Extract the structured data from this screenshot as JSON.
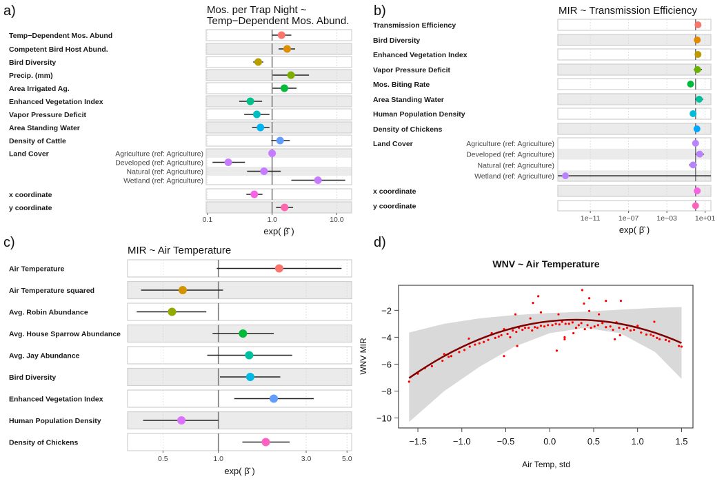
{
  "chart_data": [
    {
      "type": "forest",
      "panel_label": "a)",
      "title_lines": [
        "Mos. per Trap Night ~",
        "Temp−Dependent Mos. Abund."
      ],
      "xlabel": "exp( β̂ )",
      "x_scale": "log",
      "xlim": [
        0.0955,
        17.0
      ],
      "reference_line": 1.0,
      "ticks": [
        {
          "value": 0.1,
          "label": "0.1"
        },
        {
          "value": 1.0,
          "label": "1.0"
        },
        {
          "value": 10.0,
          "label": "10.0"
        }
      ],
      "groups": [
        {
          "label": "Temp−Dependent Mos. Abund",
          "items": [
            {
              "est": 1.4,
              "lo": 1.0,
              "hi": 1.98,
              "color": "#F8766D"
            }
          ]
        },
        {
          "label": "Competent Bird Host Abund.",
          "items": [
            {
              "est": 1.71,
              "lo": 1.26,
              "hi": 2.27,
              "color": "#DE8C00"
            }
          ]
        },
        {
          "label": "Bird Diversity",
          "items": [
            {
              "est": 0.61,
              "lo": 0.51,
              "hi": 0.73,
              "color": "#B79F00"
            }
          ]
        },
        {
          "label": "Precip. (mm)",
          "items": [
            {
              "est": 1.96,
              "lo": 1.02,
              "hi": 3.72,
              "color": "#7CAE00"
            }
          ]
        },
        {
          "label": "Area Irrigated Ag.",
          "items": [
            {
              "est": 1.55,
              "lo": 1.02,
              "hi": 2.39,
              "color": "#00BA38"
            }
          ]
        },
        {
          "label": "Enhanced Vegetation Index",
          "items": [
            {
              "est": 0.46,
              "lo": 0.31,
              "hi": 0.7,
              "color": "#00C08B"
            }
          ]
        },
        {
          "label": "Vapor Pressure Deficit",
          "items": [
            {
              "est": 0.58,
              "lo": 0.37,
              "hi": 0.91,
              "color": "#00BFC4"
            }
          ]
        },
        {
          "label": "Area Standing Water",
          "items": [
            {
              "est": 0.66,
              "lo": 0.49,
              "hi": 0.91,
              "color": "#00B4F0"
            }
          ]
        },
        {
          "label": "Density of Cattle",
          "items": [
            {
              "est": 1.33,
              "lo": 0.97,
              "hi": 1.88,
              "color": "#619CFF"
            }
          ]
        },
        {
          "label": "Land Cover",
          "items": [
            {
              "sublabel": "Agriculture (ref: Agriculture)",
              "est": 1.0,
              "lo": null,
              "hi": null,
              "color": "#C77CFF"
            },
            {
              "sublabel": "Developed (ref: Agriculture)",
              "est": 0.21,
              "lo": 0.12,
              "hi": 0.38,
              "color": "#C77CFF"
            },
            {
              "sublabel": "Natural (ref: Agriculture)",
              "est": 0.75,
              "lo": 0.41,
              "hi": 1.36,
              "color": "#C77CFF"
            },
            {
              "sublabel": "Wetland (ref: Agriculture)",
              "est": 5.12,
              "lo": 1.98,
              "hi": 13.5,
              "color": "#C77CFF"
            }
          ]
        },
        {
          "label": "x coordinate",
          "items": [
            {
              "est": 0.53,
              "lo": 0.4,
              "hi": 0.71,
              "color": "#F564E3"
            }
          ]
        },
        {
          "label": "y coordinate",
          "items": [
            {
              "est": 1.56,
              "lo": 1.15,
              "hi": 2.11,
              "color": "#FF64B0"
            }
          ]
        }
      ]
    },
    {
      "type": "forest",
      "panel_label": "b)",
      "title_lines": [
        "MIR ~ Transmission Efficiency"
      ],
      "xlabel": "exp( β̂ )",
      "x_scale": "log",
      "xlim": [
        4e-15,
        40
      ],
      "reference_line": 1.0,
      "ticks": [
        {
          "value": 1e-11,
          "label": "1e−11"
        },
        {
          "value": 1e-07,
          "label": "1e−07"
        },
        {
          "value": 0.001,
          "label": "1e−03"
        },
        {
          "value": 10,
          "label": "1e+01"
        }
      ],
      "groups": [
        {
          "label": "Transmission Efficiency",
          "items": [
            {
              "est": 1.8,
              "lo": null,
              "hi": null,
              "color": "#F8766D"
            }
          ]
        },
        {
          "label": "Bird Diversity",
          "items": [
            {
              "est": 1.5,
              "lo": null,
              "hi": null,
              "color": "#E18A00"
            }
          ]
        },
        {
          "label": "Enhanced Vegetation Index",
          "items": [
            {
              "est": 1.8,
              "lo": null,
              "hi": null,
              "color": "#BE9C00"
            }
          ]
        },
        {
          "label": "Vapor Pressure Deficit",
          "items": [
            {
              "est": 1.6,
              "lo": 0.64,
              "hi": 4.7,
              "color": "#6BB100"
            }
          ]
        },
        {
          "label": "Mos. Biting Rate",
          "items": [
            {
              "est": 0.3,
              "lo": null,
              "hi": null,
              "color": "#00BA38"
            }
          ]
        },
        {
          "label": "Area Standing Water",
          "items": [
            {
              "est": 2.4,
              "lo": 0.93,
              "hi": 6.5,
              "color": "#00C1A0"
            }
          ]
        },
        {
          "label": "Human Population Density",
          "items": [
            {
              "est": 0.55,
              "lo": null,
              "hi": null,
              "color": "#00BBDA"
            }
          ]
        },
        {
          "label": "Density of Chickens",
          "items": [
            {
              "est": 1.4,
              "lo": null,
              "hi": null,
              "color": "#00A9FF"
            }
          ]
        },
        {
          "label": "Land Cover",
          "items": [
            {
              "sublabel": "Agriculture (ref: Agriculture)",
              "est": 1.0,
              "lo": null,
              "hi": null,
              "color": "#B983FF"
            },
            {
              "sublabel": "Developed (ref: Agriculture)",
              "est": 2.7,
              "lo": 0.93,
              "hi": 7.7,
              "color": "#B983FF"
            },
            {
              "sublabel": "Natural (ref: Agriculture)",
              "est": 0.55,
              "lo": 0.2,
              "hi": 1.4,
              "color": "#B983FF"
            },
            {
              "sublabel": "Wetland (ref: Agriculture)",
              "est": 2.5e-14,
              "lo": 1e-16,
              "hi": 1000.0,
              "color": "#B983FF"
            }
          ]
        },
        {
          "label": "x coordinate",
          "items": [
            {
              "est": 1.5,
              "lo": null,
              "hi": null,
              "color": "#F763E0"
            }
          ]
        },
        {
          "label": "y coordinate",
          "items": [
            {
              "est": 1.0,
              "lo": null,
              "hi": null,
              "color": "#FF62BC"
            }
          ]
        }
      ]
    },
    {
      "type": "forest",
      "panel_label": "c)",
      "title_lines": [
        "MIR ~ Air Temperature"
      ],
      "xlabel": "exp( β̂ )",
      "x_scale": "log",
      "xlim": [
        0.321,
        5.3
      ],
      "reference_line": 1.0,
      "ticks": [
        {
          "value": 0.5,
          "label": "0.5"
        },
        {
          "value": 1.0,
          "label": "1.0"
        },
        {
          "value": 3.0,
          "label": "3.0"
        },
        {
          "value": 5.0,
          "label": "5.0"
        }
      ],
      "groups": [
        {
          "label": "Air Temperature",
          "items": [
            {
              "est": 2.14,
              "lo": 0.98,
              "hi": 4.67,
              "color": "#F8766D"
            }
          ]
        },
        {
          "label": "Air Temperature squared",
          "items": [
            {
              "est": 0.64,
              "lo": 0.38,
              "hi": 1.06,
              "color": "#D39200"
            }
          ]
        },
        {
          "label": "Avg. Robin Abundance",
          "items": [
            {
              "est": 0.56,
              "lo": 0.36,
              "hi": 0.86,
              "color": "#93AA00"
            }
          ]
        },
        {
          "label": "Avg. House Sparrow Abundance",
          "items": [
            {
              "est": 1.36,
              "lo": 0.93,
              "hi": 2.0,
              "color": "#00BA38"
            }
          ]
        },
        {
          "label": "Avg. Jay Abundance",
          "items": [
            {
              "est": 1.47,
              "lo": 0.87,
              "hi": 2.52,
              "color": "#00C19F"
            }
          ]
        },
        {
          "label": "Bird Diversity",
          "items": [
            {
              "est": 1.49,
              "lo": 1.02,
              "hi": 2.17,
              "color": "#00B9E3"
            }
          ]
        },
        {
          "label": "Enhanced Vegetation Index",
          "items": [
            {
              "est": 2.0,
              "lo": 1.22,
              "hi": 3.3,
              "color": "#619CFF"
            }
          ]
        },
        {
          "label": "Human Population Density",
          "items": [
            {
              "est": 0.63,
              "lo": 0.39,
              "hi": 1.0,
              "color": "#DB72FB"
            }
          ]
        },
        {
          "label": "Density of Chickens",
          "items": [
            {
              "est": 1.81,
              "lo": 1.35,
              "hi": 2.44,
              "color": "#FF61C3"
            }
          ]
        }
      ]
    },
    {
      "type": "scatter",
      "panel_label": "d)",
      "title": "WNV ~ Air Temperature",
      "xlabel": "Air Temp, std",
      "ylabel": "WNV MIR",
      "xlim": [
        -1.72,
        1.63
      ],
      "ylim": [
        -10.74,
        -0.14
      ],
      "x_ticks": [
        {
          "value": -1.5,
          "label": "−1.5"
        },
        {
          "value": -1.0,
          "label": "−1.0"
        },
        {
          "value": -0.5,
          "label": "−0.5"
        },
        {
          "value": 0.0,
          "label": "0.0"
        },
        {
          "value": 0.5,
          "label": "0.5"
        },
        {
          "value": 1.0,
          "label": "1.0"
        },
        {
          "value": 1.5,
          "label": "1.5"
        }
      ],
      "y_ticks": [
        {
          "value": -2,
          "label": "−2"
        },
        {
          "value": -4,
          "label": "−4"
        },
        {
          "value": -6,
          "label": "−6"
        },
        {
          "value": -8,
          "label": "−8"
        },
        {
          "value": -10,
          "label": "−10"
        }
      ],
      "point_color": "#FF0000",
      "fit_color": "#800000",
      "band_color": "#D9D9D9",
      "points": {
        "x": [
          -1.6,
          -1.5,
          -1.42,
          -1.34,
          -1.22,
          -1.2,
          -1.15,
          -1.12,
          -1.03,
          -0.97,
          -0.91,
          -0.85,
          -0.8,
          -0.75,
          -0.7,
          -0.66,
          -0.62,
          -0.58,
          -0.55,
          -0.52,
          -0.48,
          -0.45,
          -0.42,
          -0.38,
          -0.35,
          -0.31,
          -0.28,
          -0.24,
          -0.2,
          -0.17,
          -0.14,
          -0.1,
          -0.06,
          -0.02,
          0.03,
          0.07,
          0.11,
          0.14,
          0.18,
          0.22,
          0.26,
          0.3,
          0.33,
          0.36,
          0.4,
          0.43,
          0.47,
          0.51,
          0.55,
          0.6,
          0.64,
          0.69,
          0.72,
          0.76,
          0.79,
          0.84,
          0.88,
          0.92,
          0.96,
          1.0,
          1.04,
          1.1,
          1.15,
          1.18,
          1.22,
          1.25,
          1.32,
          1.36,
          1.47,
          1.5,
          -0.13,
          -0.19,
          -0.1,
          -0.39,
          -0.22,
          0.37,
          0.45,
          0.39,
          0.45,
          0.64,
          0.81,
          0.56,
          0.1,
          1.19,
          -0.52,
          -0.37,
          0.08,
          0.17,
          0.17,
          0.27,
          0.74,
          0.8,
          -0.92
        ],
        "y": [
          -7.3,
          -6.7,
          -6.3,
          -6.15,
          -5.75,
          -5.25,
          -5.45,
          -5.4,
          -5.1,
          -4.95,
          -4.7,
          -4.55,
          -4.45,
          -4.35,
          -4.2,
          -3.7,
          -4.05,
          -3.95,
          -3.85,
          -3.4,
          -3.75,
          -4.0,
          -3.5,
          -3.6,
          -3.3,
          -3.45,
          -3.3,
          -3.3,
          -3.5,
          -3.25,
          -3.3,
          -3.15,
          -3.2,
          -3.1,
          -3.1,
          -3.0,
          -3.05,
          -2.85,
          -3.0,
          -3.0,
          -2.9,
          -3.3,
          -3.1,
          -2.95,
          -3.4,
          -3.1,
          -3.3,
          -3.2,
          -3.1,
          -2.95,
          -3.25,
          -3.2,
          -3.45,
          -2.9,
          -3.3,
          -3.4,
          -3.3,
          -3.5,
          -3.45,
          -3.15,
          -3.65,
          -3.8,
          -3.8,
          -3.9,
          -4.05,
          -4.15,
          -4.2,
          -4.3,
          -4.65,
          -4.7,
          -0.95,
          -1.45,
          -2.15,
          -2.3,
          -2.6,
          -0.5,
          -1.1,
          -1.5,
          -2.05,
          -1.3,
          -1.3,
          -2.3,
          -2.3,
          -2.85,
          -5.4,
          -4.65,
          -5.0,
          -4.0,
          -4.15,
          -3.7,
          -4.15,
          -3.85,
          -4.1
        ]
      },
      "fit": {
        "x": [
          -1.6,
          -1.5,
          -1.4,
          -1.3,
          -1.2,
          -1.1,
          -1.0,
          -0.9,
          -0.8,
          -0.7,
          -0.6,
          -0.5,
          -0.4,
          -0.3,
          -0.2,
          -0.1,
          0.0,
          0.1,
          0.2,
          0.3,
          0.4,
          0.5,
          0.6,
          0.7,
          0.8,
          0.9,
          1.0,
          1.1,
          1.2,
          1.3,
          1.4,
          1.5
        ],
        "y": [
          -7.03,
          -6.59,
          -6.17,
          -5.77,
          -5.4,
          -5.05,
          -4.73,
          -4.43,
          -4.15,
          -3.9,
          -3.67,
          -3.47,
          -3.29,
          -3.13,
          -3.0,
          -2.89,
          -2.81,
          -2.75,
          -2.71,
          -2.7,
          -2.71,
          -2.75,
          -2.81,
          -2.89,
          -3.0,
          -3.13,
          -3.29,
          -3.47,
          -3.67,
          -3.9,
          -4.15,
          -4.43
        ]
      },
      "band": {
        "x": [
          -1.6,
          -1.2,
          -0.8,
          -0.4,
          0.0,
          0.4,
          0.8,
          1.2,
          1.5
        ],
        "upper": [
          -3.65,
          -3.0,
          -2.6,
          -2.35,
          -2.2,
          -2.1,
          -1.95,
          -1.82,
          -1.75
        ],
        "lower": [
          -10.3,
          -8.0,
          -6.2,
          -4.7,
          -3.7,
          -3.3,
          -3.7,
          -5.1,
          -7.1
        ]
      }
    }
  ]
}
